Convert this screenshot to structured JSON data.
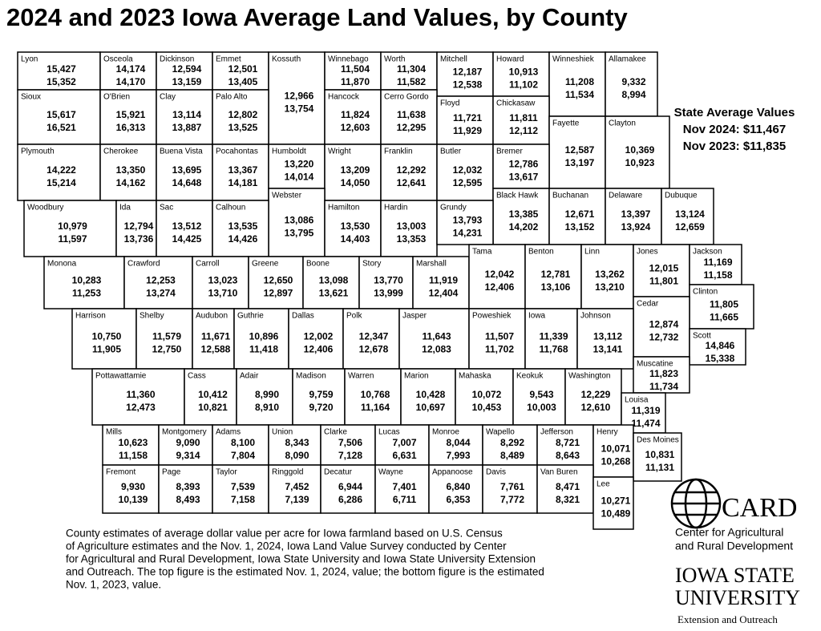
{
  "title": "2024 and 2023 Iowa Average Land Values, by County",
  "state_average": {
    "heading": "State Average Values",
    "nov_2024": "Nov 2024: $11,467",
    "nov_2023": "Nov 2023: $11,835"
  },
  "counties": [
    [
      "Lyon",
      "15,427",
      "15,352"
    ],
    [
      "Osceola",
      "14,174",
      "14,170"
    ],
    [
      "Dickinson",
      "12,594",
      "13,159"
    ],
    [
      "Emmet",
      "12,501",
      "13,405"
    ],
    [
      "Kossuth",
      "12,966",
      "13,754"
    ],
    [
      "Winnebago",
      "11,504",
      "11,870"
    ],
    [
      "Worth",
      "11,304",
      "11,582"
    ],
    [
      "Mitchell",
      "12,187",
      "12,538"
    ],
    [
      "Howard",
      "10,913",
      "11,102"
    ],
    [
      "Winneshiek",
      "11,208",
      "11,534"
    ],
    [
      "Allamakee",
      "9,332",
      "8,994"
    ],
    [
      "Sioux",
      "15,617",
      "16,521"
    ],
    [
      "O'Brien",
      "15,921",
      "16,313"
    ],
    [
      "Clay",
      "13,114",
      "13,887"
    ],
    [
      "Palo Alto",
      "12,802",
      "13,525"
    ],
    [
      "Hancock",
      "11,824",
      "12,603"
    ],
    [
      "Cerro Gordo",
      "11,638",
      "12,295"
    ],
    [
      "Floyd",
      "11,721",
      "11,929"
    ],
    [
      "Chickasaw",
      "11,811",
      "12,112"
    ],
    [
      "Fayette",
      "12,587",
      "13,197"
    ],
    [
      "Clayton",
      "10,369",
      "10,923"
    ],
    [
      "Plymouth",
      "14,222",
      "15,214"
    ],
    [
      "Cherokee",
      "13,350",
      "14,162"
    ],
    [
      "Buena Vista",
      "13,695",
      "14,648"
    ],
    [
      "Pocahontas",
      "13,367",
      "14,181"
    ],
    [
      "Humboldt",
      "13,220",
      "14,014"
    ],
    [
      "Wright",
      "13,209",
      "14,050"
    ],
    [
      "Franklin",
      "12,292",
      "12,641"
    ],
    [
      "Butler",
      "12,032",
      "12,595"
    ],
    [
      "Bremer",
      "12,786",
      "13,617"
    ],
    [
      "Webster",
      "13,086",
      "13,795"
    ],
    [
      "Black Hawk",
      "13,385",
      "14,202"
    ],
    [
      "Buchanan",
      "12,671",
      "13,152"
    ],
    [
      "Delaware",
      "13,397",
      "13,924"
    ],
    [
      "Dubuque",
      "13,124",
      "12,659"
    ],
    [
      "Woodbury",
      "10,979",
      "11,597"
    ],
    [
      "Ida",
      "12,794",
      "13,736"
    ],
    [
      "Sac",
      "13,512",
      "14,425"
    ],
    [
      "Calhoun",
      "13,535",
      "14,426"
    ],
    [
      "Hamilton",
      "13,530",
      "14,403"
    ],
    [
      "Hardin",
      "13,003",
      "13,353"
    ],
    [
      "Grundy",
      "13,793",
      "14,231"
    ],
    [
      "Monona",
      "10,283",
      "11,253"
    ],
    [
      "Crawford",
      "12,253",
      "13,274"
    ],
    [
      "Carroll",
      "13,023",
      "13,710"
    ],
    [
      "Greene",
      "12,650",
      "12,897"
    ],
    [
      "Boone",
      "13,098",
      "13,621"
    ],
    [
      "Story",
      "13,770",
      "13,999"
    ],
    [
      "Marshall",
      "11,919",
      "12,404"
    ],
    [
      "Tama",
      "12,042",
      "12,406"
    ],
    [
      "Benton",
      "12,781",
      "13,106"
    ],
    [
      "Linn",
      "13,262",
      "13,210"
    ],
    [
      "Jones",
      "12,015",
      "11,801"
    ],
    [
      "Jackson",
      "11,169",
      "11,158"
    ],
    [
      "Clinton",
      "11,805",
      "11,665"
    ],
    [
      "Cedar",
      "12,874",
      "12,732"
    ],
    [
      "Scott",
      "14,846",
      "15,338"
    ],
    [
      "Harrison",
      "10,750",
      "11,905"
    ],
    [
      "Shelby",
      "11,579",
      "12,750"
    ],
    [
      "Audubon",
      "11,671",
      "12,588"
    ],
    [
      "Guthrie",
      "10,896",
      "11,418"
    ],
    [
      "Dallas",
      "12,002",
      "12,406"
    ],
    [
      "Polk",
      "12,347",
      "12,678"
    ],
    [
      "Jasper",
      "11,643",
      "12,083"
    ],
    [
      "Poweshiek",
      "11,507",
      "11,702"
    ],
    [
      "Iowa",
      "11,339",
      "11,768"
    ],
    [
      "Johnson",
      "13,112",
      "13,141"
    ],
    [
      "Muscatine",
      "11,823",
      "11,734"
    ],
    [
      "Pottawattamie",
      "11,360",
      "12,473"
    ],
    [
      "Cass",
      "10,412",
      "10,821"
    ],
    [
      "Adair",
      "8,990",
      "8,910"
    ],
    [
      "Madison",
      "9,759",
      "9,720"
    ],
    [
      "Warren",
      "10,768",
      "11,164"
    ],
    [
      "Marion",
      "10,428",
      "10,697"
    ],
    [
      "Mahaska",
      "10,072",
      "10,453"
    ],
    [
      "Keokuk",
      "9,543",
      "10,003"
    ],
    [
      "Washington",
      "12,229",
      "12,610"
    ],
    [
      "Louisa",
      "11,319",
      "11,474"
    ],
    [
      "Mills",
      "10,623",
      "11,158"
    ],
    [
      "Montgomery",
      "9,090",
      "9,314"
    ],
    [
      "Adams",
      "8,100",
      "7,804"
    ],
    [
      "Union",
      "8,343",
      "8,090"
    ],
    [
      "Clarke",
      "7,506",
      "7,128"
    ],
    [
      "Lucas",
      "7,007",
      "6,631"
    ],
    [
      "Monroe",
      "8,044",
      "7,993"
    ],
    [
      "Wapello",
      "8,292",
      "8,489"
    ],
    [
      "Jefferson",
      "8,721",
      "8,643"
    ],
    [
      "Henry",
      "10,071",
      "10,268"
    ],
    [
      "Des Moines",
      "10,831",
      "11,131"
    ],
    [
      "Fremont",
      "9,930",
      "10,139"
    ],
    [
      "Page",
      "8,393",
      "8,493"
    ],
    [
      "Taylor",
      "7,539",
      "7,158"
    ],
    [
      "Ringgold",
      "7,452",
      "7,139"
    ],
    [
      "Decatur",
      "6,944",
      "6,286"
    ],
    [
      "Wayne",
      "7,401",
      "6,711"
    ],
    [
      "Appanoose",
      "6,840",
      "6,353"
    ],
    [
      "Davis",
      "7,761",
      "7,772"
    ],
    [
      "Van Buren",
      "8,471",
      "8,321"
    ],
    [
      "Lee",
      "10,271",
      "10,489"
    ]
  ],
  "caption": [
    "County estimates of average dollar value per acre for Iowa farmland based on U.S. Census",
    "of Agriculture estimates and the Nov. 1, 2024, Iowa Land Value Survey conducted by Center",
    "for Agricultural and Rural Development, Iowa State University and Iowa State University Extension",
    "and Outreach. The top figure is the estimated Nov. 1, 2024, value; the bottom figure is the estimated",
    "Nov. 1, 2023, value."
  ],
  "card_logo": {
    "name": "CARD",
    "line1": "Center for Agricultural",
    "line2": "and Rural Development"
  },
  "isu_logo": {
    "line1": "IOWA STATE",
    "line2": "UNIVERSITY",
    "line3": "Extension and Outreach"
  }
}
